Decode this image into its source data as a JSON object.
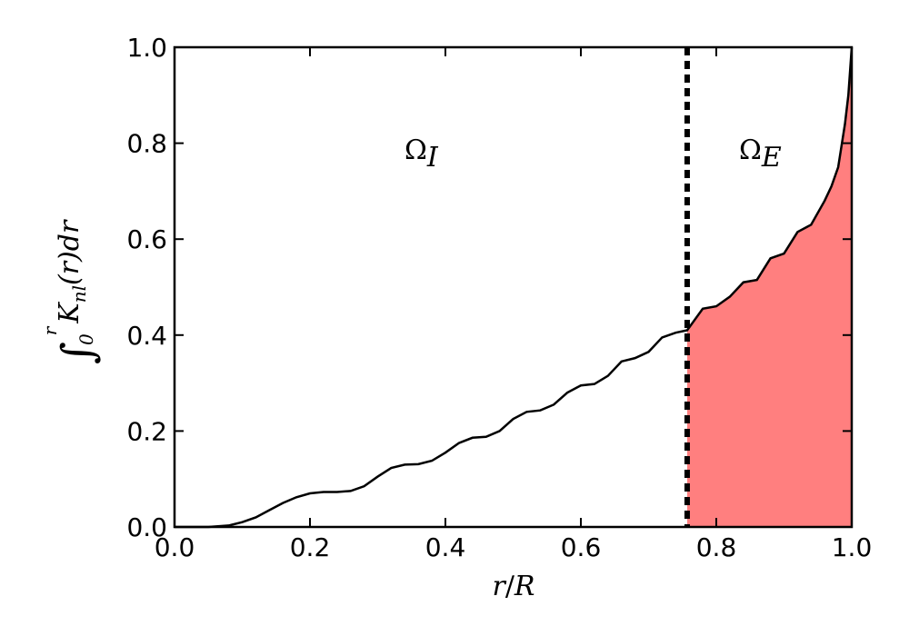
{
  "chart_data": {
    "type": "line",
    "xlabel": {
      "var": "r",
      "slash": "/",
      "den": "R"
    },
    "ylabel": {
      "integral": "∫",
      "lower": "0",
      "upper": "r",
      "body": "K",
      "sub": "nl",
      "rest": "(r)dr"
    },
    "annotations": [
      {
        "text": "Ω",
        "sub": "I"
      },
      {
        "text": "Ω",
        "sub": "E"
      }
    ],
    "x": [
      0,
      0.05,
      0.08,
      0.1,
      0.12,
      0.14,
      0.16,
      0.18,
      0.2,
      0.22,
      0.24,
      0.26,
      0.28,
      0.3,
      0.32,
      0.34,
      0.36,
      0.38,
      0.4,
      0.42,
      0.44,
      0.46,
      0.48,
      0.5,
      0.52,
      0.54,
      0.56,
      0.58,
      0.6,
      0.62,
      0.64,
      0.66,
      0.68,
      0.7,
      0.72,
      0.74,
      0.757,
      0.78,
      0.8,
      0.82,
      0.84,
      0.86,
      0.88,
      0.9,
      0.92,
      0.94,
      0.96,
      0.97,
      0.98,
      0.99,
      0.995,
      1.0
    ],
    "series": [
      {
        "color": "#000000",
        "values": [
          0,
          0,
          0.003,
          0.01,
          0.02,
          0.035,
          0.05,
          0.062,
          0.07,
          0.073,
          0.073,
          0.075,
          0.085,
          0.105,
          0.123,
          0.13,
          0.131,
          0.138,
          0.155,
          0.175,
          0.186,
          0.188,
          0.2,
          0.225,
          0.24,
          0.243,
          0.255,
          0.28,
          0.295,
          0.298,
          0.315,
          0.345,
          0.352,
          0.365,
          0.395,
          0.405,
          0.41,
          0.455,
          0.46,
          0.48,
          0.51,
          0.515,
          0.56,
          0.57,
          0.615,
          0.63,
          0.68,
          0.71,
          0.75,
          0.84,
          0.9,
          1.0
        ]
      }
    ],
    "boundary_x": 0.757,
    "fill_color": "#ff7f7f",
    "xlim": [
      0,
      1
    ],
    "ylim": [
      0,
      1
    ],
    "xticks": [
      {
        "value": 0,
        "label": "0.0"
      },
      {
        "value": 0.2,
        "label": "0.2"
      },
      {
        "value": 0.4,
        "label": "0.4"
      },
      {
        "value": 0.6,
        "label": "0.6"
      },
      {
        "value": 0.8,
        "label": "0.8"
      },
      {
        "value": 1,
        "label": "1.0"
      }
    ],
    "yticks": [
      {
        "value": 0,
        "label": "0.0"
      },
      {
        "value": 0.2,
        "label": "0.2"
      },
      {
        "value": 0.4,
        "label": "0.4"
      },
      {
        "value": 0.6,
        "label": "0.6"
      },
      {
        "value": 0.8,
        "label": "0.8"
      },
      {
        "value": 1,
        "label": "1.0"
      }
    ],
    "grid": false
  }
}
